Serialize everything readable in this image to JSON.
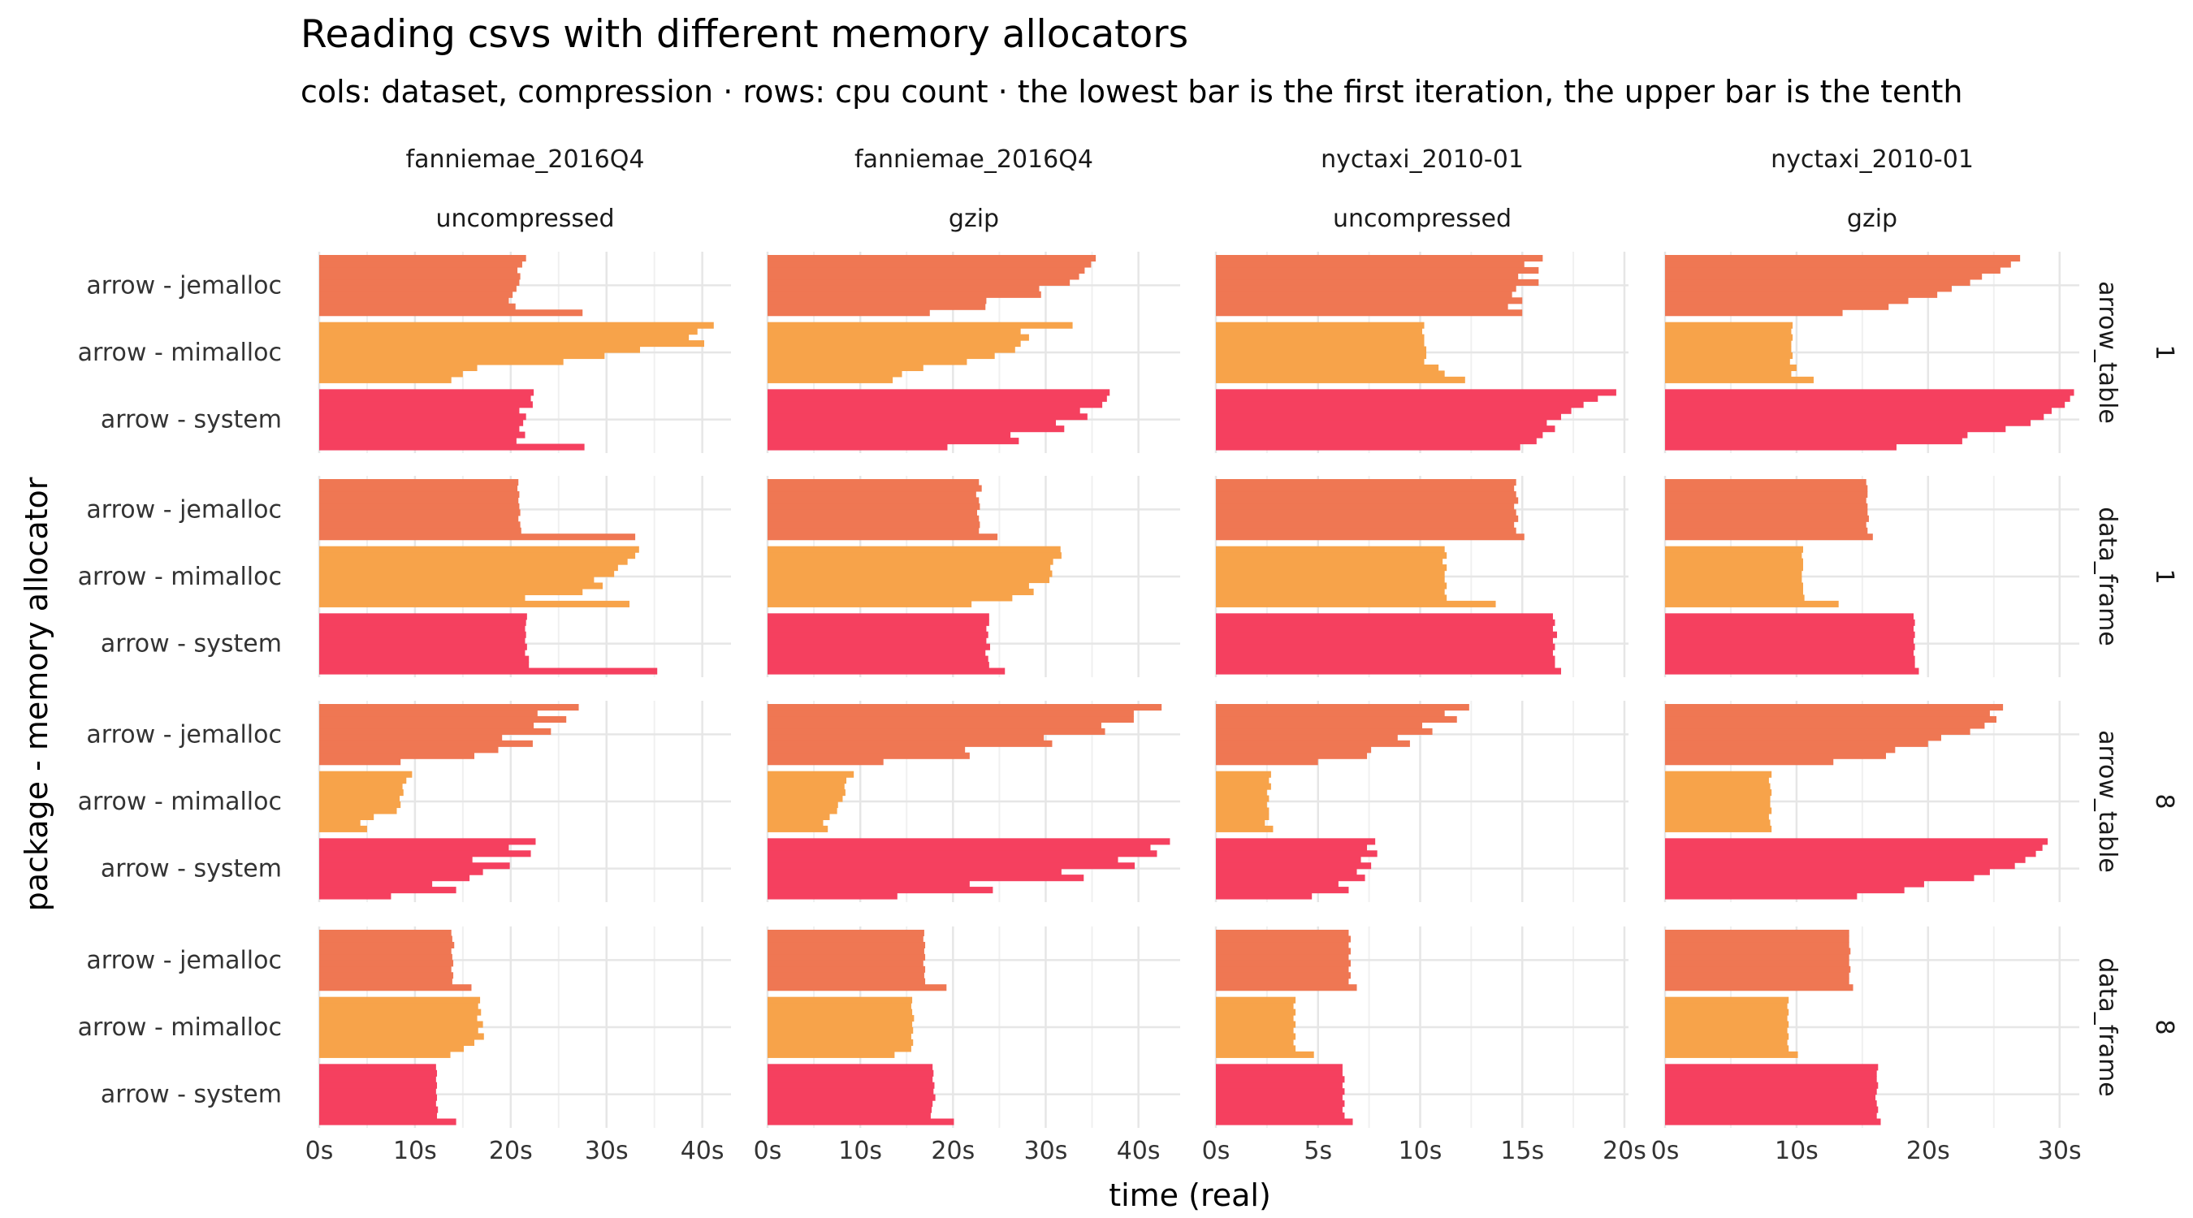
{
  "chart_data": {
    "type": "bar",
    "orientation": "horizontal",
    "title": "Reading csvs with different memory allocators",
    "subtitle": "cols: dataset, compression · rows: cpu count · the lowest bar is the first iteration, the upper bar is the tenth",
    "xlabel": "time (real)",
    "ylabel": "package - memory allocator",
    "columns": [
      {
        "dataset": "fanniemae_2016Q4",
        "compression": "uncompressed",
        "xlim": [
          0,
          43
        ],
        "ticks": [
          0,
          10,
          20,
          30,
          40
        ],
        "tick_labels": [
          "0s",
          "10s",
          "20s",
          "30s",
          "40s"
        ]
      },
      {
        "dataset": "fanniemae_2016Q4",
        "compression": "gzip",
        "xlim": [
          0,
          44.5
        ],
        "ticks": [
          0,
          10,
          20,
          30,
          40
        ],
        "tick_labels": [
          "0s",
          "10s",
          "20s",
          "30s",
          "40s"
        ]
      },
      {
        "dataset": "nyctaxi_2010-01",
        "compression": "uncompressed",
        "xlim": [
          0,
          20.2
        ],
        "ticks": [
          0,
          5,
          10,
          15,
          20
        ],
        "tick_labels": [
          "0s",
          "5s",
          "10s",
          "15s",
          "20s"
        ]
      },
      {
        "dataset": "nyctaxi_2010-01",
        "compression": "gzip",
        "xlim": [
          0,
          31.5
        ],
        "ticks": [
          0,
          10,
          20,
          30
        ],
        "tick_labels": [
          "0s",
          "10s",
          "20s",
          "30s"
        ]
      }
    ],
    "rows": [
      {
        "package": "arrow_table",
        "cpu_count": "1"
      },
      {
        "package": "data_frame",
        "cpu_count": "1"
      },
      {
        "package": "arrow_table",
        "cpu_count": "8"
      },
      {
        "package": "data_frame",
        "cpu_count": "8"
      }
    ],
    "allocators": [
      "arrow - jemalloc",
      "arrow - mimalloc",
      "arrow - system"
    ],
    "colors": {
      "arrow - jemalloc": "#EF7753",
      "arrow - mimalloc": "#F7A34A",
      "arrow - system": "#F5405F"
    },
    "iterations_note": "values listed from first iteration (lowest bar) to tenth iteration (upper bar), seconds",
    "panels": [
      {
        "row": 0,
        "col": 0,
        "series": [
          {
            "name": "arrow - jemalloc",
            "values": [
              27.5,
              20.5,
              19.8,
              20.2,
              20.6,
              20.9,
              21.0,
              20.7,
              21.2,
              21.6
            ]
          },
          {
            "name": "arrow - mimalloc",
            "values": [
              13.8,
              15.0,
              16.5,
              25.5,
              29.8,
              33.5,
              40.2,
              38.6,
              39.5,
              41.2
            ]
          },
          {
            "name": "arrow - system",
            "values": [
              27.7,
              20.6,
              21.5,
              20.9,
              21.3,
              21.6,
              20.9,
              22.3,
              22.1,
              22.4
            ]
          }
        ]
      },
      {
        "row": 0,
        "col": 1,
        "series": [
          {
            "name": "arrow - jemalloc",
            "values": [
              17.5,
              23.5,
              23.6,
              29.5,
              29.3,
              32.6,
              33.6,
              34.2,
              34.9,
              35.4
            ]
          },
          {
            "name": "arrow - mimalloc",
            "values": [
              13.5,
              14.5,
              16.8,
              21.5,
              24.5,
              26.7,
              27.3,
              28.2,
              27.3,
              32.9
            ]
          },
          {
            "name": "arrow - system",
            "values": [
              19.4,
              27.1,
              26.2,
              32.0,
              31.1,
              34.5,
              33.7,
              36.1,
              36.6,
              36.9
            ]
          }
        ]
      },
      {
        "row": 0,
        "col": 2,
        "series": [
          {
            "name": "arrow - jemalloc",
            "values": [
              15.0,
              14.3,
              15.0,
              14.5,
              14.7,
              15.8,
              14.8,
              15.8,
              15.1,
              16.0
            ]
          },
          {
            "name": "arrow - mimalloc",
            "values": [
              12.2,
              11.2,
              10.9,
              10.2,
              10.3,
              10.3,
              10.2,
              10.2,
              10.1,
              10.2
            ]
          },
          {
            "name": "arrow - system",
            "values": [
              14.9,
              15.7,
              16.0,
              16.6,
              16.2,
              16.9,
              17.4,
              18.0,
              18.7,
              19.6
            ]
          }
        ]
      },
      {
        "row": 0,
        "col": 3,
        "series": [
          {
            "name": "arrow - jemalloc",
            "values": [
              13.5,
              17.0,
              18.5,
              20.7,
              21.8,
              23.2,
              24.1,
              25.5,
              26.3,
              27.0
            ]
          },
          {
            "name": "arrow - mimalloc",
            "values": [
              11.3,
              9.6,
              10.0,
              9.5,
              9.7,
              9.6,
              9.6,
              9.7,
              9.6,
              9.7
            ]
          },
          {
            "name": "arrow - system",
            "values": [
              17.6,
              22.6,
              23.0,
              25.9,
              27.8,
              28.8,
              29.4,
              30.4,
              30.8,
              31.1
            ]
          }
        ]
      },
      {
        "row": 1,
        "col": 0,
        "series": [
          {
            "name": "arrow - jemalloc",
            "values": [
              33.0,
              21.1,
              21.0,
              20.8,
              21.0,
              20.9,
              20.8,
              20.9,
              20.7,
              20.8
            ]
          },
          {
            "name": "arrow - mimalloc",
            "values": [
              32.4,
              21.5,
              27.5,
              29.6,
              28.7,
              30.8,
              31.2,
              32.2,
              33.0,
              33.4
            ]
          },
          {
            "name": "arrow - system",
            "values": [
              35.3,
              21.9,
              21.9,
              21.5,
              21.7,
              21.5,
              21.6,
              21.5,
              21.6,
              21.7
            ]
          }
        ]
      },
      {
        "row": 1,
        "col": 1,
        "series": [
          {
            "name": "arrow - jemalloc",
            "values": [
              24.8,
              22.8,
              22.9,
              22.8,
              22.6,
              22.9,
              22.8,
              22.5,
              23.1,
              22.8
            ]
          },
          {
            "name": "arrow - mimalloc",
            "values": [
              22.0,
              26.4,
              28.7,
              28.2,
              30.4,
              30.7,
              30.5,
              30.8,
              31.7,
              31.6
            ]
          },
          {
            "name": "arrow - system",
            "values": [
              25.6,
              23.9,
              23.8,
              23.5,
              24.0,
              23.6,
              23.8,
              23.6,
              23.9,
              23.9
            ]
          }
        ]
      },
      {
        "row": 1,
        "col": 2,
        "series": [
          {
            "name": "arrow - jemalloc",
            "values": [
              15.1,
              14.7,
              14.6,
              14.8,
              14.7,
              14.6,
              14.8,
              14.7,
              14.6,
              14.7
            ]
          },
          {
            "name": "arrow - mimalloc",
            "values": [
              13.7,
              11.3,
              11.2,
              11.3,
              11.2,
              11.2,
              11.3,
              11.1,
              11.3,
              11.2
            ]
          },
          {
            "name": "arrow - system",
            "values": [
              16.9,
              16.6,
              16.6,
              16.5,
              16.6,
              16.5,
              16.7,
              16.5,
              16.6,
              16.5
            ]
          }
        ]
      },
      {
        "row": 1,
        "col": 3,
        "series": [
          {
            "name": "arrow - jemalloc",
            "values": [
              15.8,
              15.4,
              15.3,
              15.5,
              15.4,
              15.4,
              15.3,
              15.4,
              15.4,
              15.3
            ]
          },
          {
            "name": "arrow - mimalloc",
            "values": [
              13.2,
              10.6,
              10.5,
              10.5,
              10.4,
              10.4,
              10.5,
              10.5,
              10.4,
              10.5
            ]
          },
          {
            "name": "arrow - system",
            "values": [
              19.3,
              19.0,
              19.0,
              18.9,
              19.0,
              18.9,
              19.0,
              18.9,
              19.0,
              18.9
            ]
          }
        ]
      },
      {
        "row": 2,
        "col": 0,
        "series": [
          {
            "name": "arrow - jemalloc",
            "values": [
              8.5,
              16.2,
              18.7,
              22.3,
              19.1,
              24.2,
              22.4,
              25.8,
              22.8,
              27.1
            ]
          },
          {
            "name": "arrow - mimalloc",
            "values": [
              5.0,
              4.3,
              5.7,
              8.1,
              8.5,
              8.4,
              8.8,
              8.7,
              9.1,
              9.7
            ]
          },
          {
            "name": "arrow - system",
            "values": [
              7.5,
              14.3,
              11.8,
              15.7,
              17.1,
              19.9,
              16.0,
              22.1,
              19.8,
              22.6
            ]
          }
        ]
      },
      {
        "row": 2,
        "col": 1,
        "series": [
          {
            "name": "arrow - jemalloc",
            "values": [
              12.5,
              21.8,
              21.3,
              30.7,
              29.8,
              36.4,
              36.0,
              39.5,
              39.5,
              42.5
            ]
          },
          {
            "name": "arrow - mimalloc",
            "values": [
              6.5,
              6.0,
              6.7,
              7.5,
              7.6,
              8.1,
              8.4,
              8.3,
              8.5,
              9.3
            ]
          },
          {
            "name": "arrow - system",
            "values": [
              14.0,
              24.3,
              21.8,
              34.1,
              31.7,
              39.6,
              37.8,
              42.0,
              41.3,
              43.4
            ]
          }
        ]
      },
      {
        "row": 2,
        "col": 2,
        "series": [
          {
            "name": "arrow - jemalloc",
            "values": [
              5.0,
              7.4,
              7.6,
              9.5,
              8.9,
              10.6,
              10.1,
              11.8,
              11.2,
              12.4
            ]
          },
          {
            "name": "arrow - mimalloc",
            "values": [
              2.8,
              2.4,
              2.6,
              2.6,
              2.5,
              2.6,
              2.5,
              2.7,
              2.6,
              2.7
            ]
          },
          {
            "name": "arrow - system",
            "values": [
              4.7,
              6.5,
              6.0,
              7.3,
              6.9,
              7.6,
              7.1,
              7.9,
              7.4,
              7.8
            ]
          }
        ]
      },
      {
        "row": 2,
        "col": 3,
        "series": [
          {
            "name": "arrow - jemalloc",
            "values": [
              12.8,
              16.8,
              17.5,
              20.0,
              21.0,
              23.2,
              24.3,
              25.2,
              24.7,
              25.7
            ]
          },
          {
            "name": "arrow - mimalloc",
            "values": [
              8.1,
              8.0,
              7.9,
              8.1,
              8.0,
              8.0,
              8.1,
              8.0,
              7.9,
              8.1
            ]
          },
          {
            "name": "arrow - system",
            "values": [
              14.6,
              18.2,
              19.7,
              23.5,
              24.7,
              26.6,
              27.4,
              28.2,
              28.7,
              29.1
            ]
          }
        ]
      },
      {
        "row": 3,
        "col": 0,
        "series": [
          {
            "name": "arrow - jemalloc",
            "values": [
              15.9,
              13.9,
              14.0,
              13.8,
              14.0,
              13.9,
              13.8,
              14.1,
              13.9,
              13.8
            ]
          },
          {
            "name": "arrow - mimalloc",
            "values": [
              13.7,
              15.1,
              16.2,
              17.2,
              16.6,
              17.1,
              16.5,
              16.9,
              16.6,
              16.8
            ]
          },
          {
            "name": "arrow - system",
            "values": [
              14.3,
              12.3,
              12.4,
              12.2,
              12.3,
              12.2,
              12.3,
              12.2,
              12.3,
              12.2
            ]
          }
        ]
      },
      {
        "row": 3,
        "col": 1,
        "series": [
          {
            "name": "arrow - jemalloc",
            "values": [
              19.3,
              17.0,
              16.9,
              17.0,
              16.8,
              17.0,
              16.9,
              17.0,
              16.8,
              16.9
            ]
          },
          {
            "name": "arrow - mimalloc",
            "values": [
              13.7,
              15.5,
              15.7,
              15.5,
              15.7,
              15.6,
              15.8,
              15.6,
              15.5,
              15.6
            ]
          },
          {
            "name": "arrow - system",
            "values": [
              20.1,
              17.6,
              17.7,
              17.8,
              18.1,
              17.9,
              18.0,
              17.8,
              17.9,
              17.8
            ]
          }
        ]
      },
      {
        "row": 3,
        "col": 2,
        "series": [
          {
            "name": "arrow - jemalloc",
            "values": [
              6.9,
              6.5,
              6.6,
              6.5,
              6.6,
              6.5,
              6.6,
              6.5,
              6.6,
              6.5
            ]
          },
          {
            "name": "arrow - mimalloc",
            "values": [
              4.8,
              3.9,
              3.8,
              3.9,
              3.8,
              3.9,
              3.8,
              3.9,
              3.8,
              3.9
            ]
          },
          {
            "name": "arrow - system",
            "values": [
              6.7,
              6.3,
              6.2,
              6.3,
              6.2,
              6.3,
              6.2,
              6.3,
              6.2,
              6.2
            ]
          }
        ]
      },
      {
        "row": 3,
        "col": 3,
        "series": [
          {
            "name": "arrow - jemalloc",
            "values": [
              14.3,
              14.0,
              14.0,
              14.1,
              14.0,
              14.0,
              14.1,
              14.0,
              14.0,
              14.0
            ]
          },
          {
            "name": "arrow - mimalloc",
            "values": [
              10.1,
              9.4,
              9.3,
              9.4,
              9.3,
              9.4,
              9.3,
              9.4,
              9.3,
              9.4
            ]
          },
          {
            "name": "arrow - system",
            "values": [
              16.4,
              16.1,
              16.2,
              16.1,
              16.0,
              16.1,
              16.2,
              16.1,
              16.1,
              16.2
            ]
          }
        ]
      }
    ],
    "grid": true,
    "legend": "none"
  }
}
